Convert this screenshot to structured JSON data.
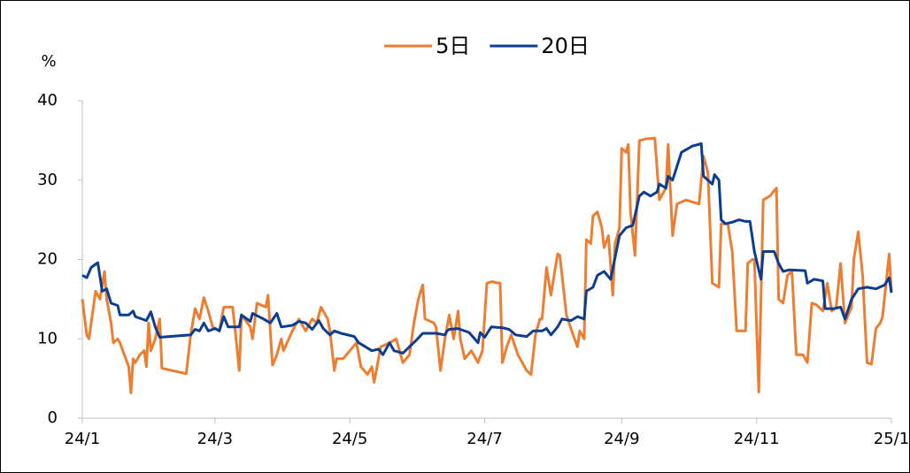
{
  "chart_data": {
    "type": "line",
    "y_label": "%",
    "xlim": [
      0,
      366
    ],
    "xticks": [
      {
        "value": 0,
        "label": "24/1"
      },
      {
        "value": 60,
        "label": "24/3"
      },
      {
        "value": 121,
        "label": "24/5"
      },
      {
        "value": 182,
        "label": "24/7"
      },
      {
        "value": 244,
        "label": "24/9"
      },
      {
        "value": 305,
        "label": "24/11"
      },
      {
        "value": 366,
        "label": "25/1"
      }
    ],
    "ylim": [
      0,
      40
    ],
    "yticks": [
      0,
      10,
      20,
      30,
      40
    ],
    "grid": false,
    "legend": "top",
    "series": [
      {
        "name": "5日",
        "color": "#ED7D31",
        "x": [
          0,
          2,
          3,
          5,
          6,
          8,
          10,
          11,
          13,
          14,
          16,
          17,
          19,
          21,
          22,
          23,
          24,
          26,
          28,
          29,
          30,
          31,
          33,
          35,
          36,
          47,
          49,
          51,
          53,
          55,
          57,
          59,
          62,
          64,
          68,
          69,
          71,
          72,
          76,
          77,
          79,
          83,
          84,
          86,
          88,
          90,
          91,
          95,
          98,
          101,
          104,
          106,
          108,
          111,
          112,
          114,
          115,
          118,
          121,
          124,
          126,
          129,
          131,
          132,
          135,
          139,
          142,
          145,
          148,
          150,
          152,
          154,
          155,
          159,
          160,
          162,
          164,
          166,
          168,
          170,
          171,
          173,
          176,
          179,
          181,
          183,
          185,
          189,
          190,
          192,
          194,
          197,
          201,
          203,
          205,
          207,
          208,
          210,
          212,
          214,
          215,
          216,
          219,
          222,
          224,
          225,
          227,
          228,
          230,
          231,
          233,
          235,
          236,
          238,
          240,
          241,
          243,
          244,
          246,
          247,
          248,
          250,
          252,
          255,
          259,
          261,
          264,
          265,
          267,
          269,
          273,
          279,
          281,
          283,
          285,
          288,
          289,
          292,
          294,
          296,
          300,
          301,
          303,
          304,
          306,
          308,
          311,
          314,
          315,
          317,
          319,
          321,
          323,
          326,
          328,
          330,
          332,
          335,
          337,
          339,
          341,
          343,
          345,
          348,
          349,
          351,
          353,
          355,
          357,
          359,
          361,
          362,
          365,
          366
        ],
        "values": [
          15,
          10.5,
          10,
          14,
          16,
          15,
          18.5,
          15,
          12,
          9.5,
          10,
          9.5,
          8,
          6.5,
          3.2,
          7.5,
          7,
          8,
          8.5,
          6.5,
          12,
          8.5,
          10,
          12.5,
          6.3,
          5.6,
          10.5,
          13.8,
          12.5,
          15.2,
          13.5,
          11.5,
          11,
          14,
          14,
          11.5,
          6,
          13,
          11.5,
          10,
          14.5,
          14,
          15.5,
          6.7,
          8,
          10,
          8.5,
          11,
          12.5,
          11,
          12.5,
          12,
          14,
          12.5,
          11,
          6,
          7.5,
          7.5,
          8.5,
          9.5,
          6.5,
          5.5,
          6.5,
          4.5,
          9,
          9.5,
          10,
          7,
          8,
          12,
          15,
          16.8,
          12.5,
          12,
          11.5,
          6,
          10,
          13,
          10,
          13.5,
          10,
          7.5,
          8.5,
          7,
          8.5,
          17,
          17.2,
          17,
          7,
          9,
          10.5,
          8,
          6,
          5.5,
          10.5,
          12.5,
          12.5,
          19,
          15.5,
          19,
          20.7,
          20.5,
          13,
          10.5,
          9,
          11,
          10,
          22.5,
          22,
          25.5,
          26,
          24,
          21.5,
          23,
          15.5,
          22,
          24,
          34,
          33.5,
          34.5,
          26,
          20.5,
          35,
          35.2,
          35.3,
          27.5,
          29,
          34.5,
          23,
          27,
          27.5,
          27,
          33,
          31,
          17,
          16.5,
          24.5,
          24.5,
          21,
          11,
          11,
          19.5,
          20,
          20,
          3.3,
          27.5,
          28,
          29,
          15,
          14.5,
          18,
          18.5,
          8,
          8,
          7,
          14.5,
          14.3,
          13.5,
          17,
          13.5,
          14,
          19.5,
          12,
          14,
          20,
          23.5,
          18,
          7,
          6.8,
          11.3,
          12,
          12.8,
          20.7,
          16
        ]
      },
      {
        "name": "20日",
        "color": "#0B3D91",
        "x": [
          0,
          2,
          4,
          7,
          9,
          11,
          13,
          16,
          17,
          21,
          23,
          24,
          29,
          31,
          33,
          35,
          49,
          51,
          53,
          55,
          57,
          60,
          62,
          64,
          66,
          71,
          72,
          76,
          77,
          82,
          85,
          88,
          90,
          95,
          98,
          101,
          104,
          107,
          109,
          112,
          114,
          117,
          123,
          125,
          128,
          131,
          134,
          136,
          139,
          141,
          145,
          148,
          151,
          154,
          160,
          164,
          165,
          166,
          170,
          175,
          179,
          180,
          182,
          185,
          190,
          193,
          196,
          201,
          204,
          208,
          210,
          212,
          215,
          217,
          221,
          224,
          227,
          228,
          231,
          233,
          236,
          239,
          243,
          246,
          249,
          252,
          254,
          257,
          260,
          261,
          264,
          265,
          267,
          271,
          276,
          280,
          281,
          285,
          286,
          288,
          289,
          291,
          294,
          297,
          300,
          302,
          304,
          307,
          308,
          313,
          315,
          317,
          320,
          327,
          328,
          331,
          335,
          336,
          340,
          343,
          345,
          348,
          351,
          355,
          359,
          363,
          365,
          366
        ],
        "values": [
          18,
          17.7,
          19,
          19.6,
          16,
          16.3,
          14.5,
          14.2,
          13,
          13,
          13.5,
          12.8,
          12.3,
          13.4,
          11.5,
          10.2,
          10.5,
          11.2,
          11,
          12,
          11,
          11.3,
          11,
          12.8,
          11.5,
          11.5,
          13,
          12.2,
          13.2,
          12.5,
          12,
          13.2,
          11.5,
          11.7,
          12.2,
          12,
          11.2,
          12.3,
          11.3,
          10.5,
          11,
          10.7,
          10.3,
          9.5,
          9,
          8.5,
          8.7,
          8,
          9.5,
          8.5,
          8.2,
          9,
          9.8,
          10.7,
          10.7,
          10.5,
          11,
          11.2,
          11.3,
          10.8,
          9.5,
          10.8,
          10.2,
          11.5,
          11.4,
          11.2,
          10.5,
          10.3,
          11,
          11,
          11.3,
          10.5,
          11.5,
          12.5,
          12.3,
          12.8,
          12.5,
          16,
          16.5,
          18,
          18.5,
          17.5,
          23,
          24,
          24.3,
          28,
          28.5,
          28,
          28.5,
          29.5,
          29,
          30.5,
          30,
          33.5,
          34.3,
          34.6,
          30.5,
          29.5,
          30.7,
          30,
          25,
          24.5,
          24.7,
          25,
          24.8,
          24.8,
          21,
          17.5,
          21,
          21,
          19.5,
          18.5,
          18.7,
          18.6,
          17,
          17.5,
          17.3,
          13.8,
          13.8,
          14,
          12.5,
          15,
          16.3,
          16.5,
          16.3,
          16.8,
          17.7,
          15.8
        ]
      }
    ]
  }
}
